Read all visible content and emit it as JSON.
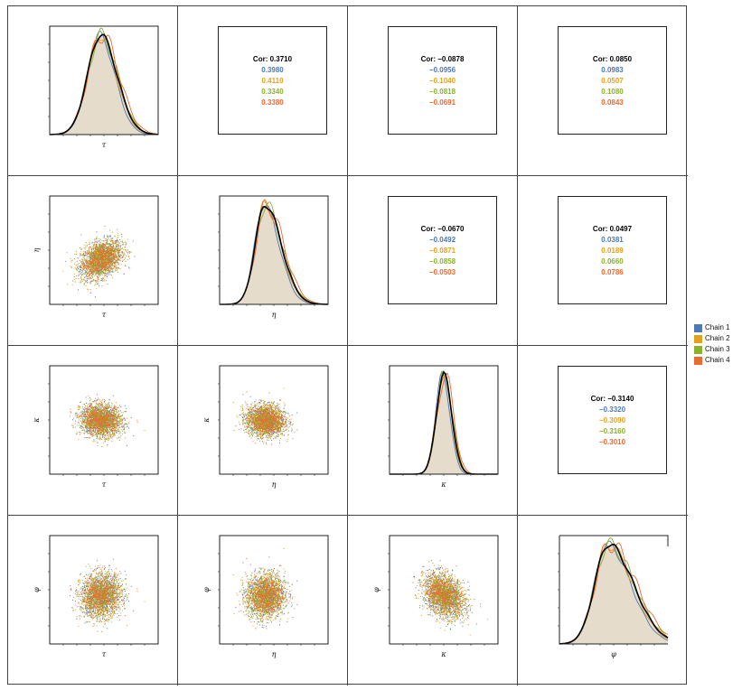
{
  "chart_data": {
    "type": "scatter-matrix",
    "variables": [
      "τ",
      "η",
      "κ",
      "φ"
    ],
    "colors": {
      "chain1": "#4f79b5",
      "chain2": "#e2a21b",
      "chain3": "#8ab22a",
      "chain4": "#ea6a32",
      "combined": "#000000",
      "density_fill": "#e6dccb"
    },
    "legend": {
      "placement": "right",
      "entries": [
        "Chain 1",
        "Chain 2",
        "Chain 3",
        "Chain 4"
      ]
    },
    "correlations": [
      {
        "pair": [
          "τ",
          "η"
        ],
        "overall": "Cor: 0.3710",
        "chains": [
          "0.3980",
          "0.4110",
          "0.3340",
          "0.3380"
        ]
      },
      {
        "pair": [
          "τ",
          "κ"
        ],
        "overall": "Cor: −0.0878",
        "chains": [
          "−0.0956",
          "−0.1040",
          "−0.0818",
          "−0.0691"
        ]
      },
      {
        "pair": [
          "τ",
          "φ"
        ],
        "overall": "Cor: 0.0850",
        "chains": [
          "0.0983",
          "0.0507",
          "0.1080",
          "0.0843"
        ]
      },
      {
        "pair": [
          "η",
          "κ"
        ],
        "overall": "Cor: −0.0670",
        "chains": [
          "−0.0492",
          "−0.0871",
          "−0.0858",
          "−0.0503"
        ]
      },
      {
        "pair": [
          "η",
          "φ"
        ],
        "overall": "Cor: 0.0497",
        "chains": [
          "0.0381",
          "0.0189",
          "0.0660",
          "0.0786"
        ]
      },
      {
        "pair": [
          "κ",
          "φ"
        ],
        "overall": "Cor: −0.3140",
        "chains": [
          "−0.3320",
          "−0.3090",
          "−0.3160",
          "−0.3010"
        ]
      }
    ],
    "diagonal": "density per chain overlaid with combined density",
    "lower": "scatter of posterior draws colored by chain",
    "grid": false
  }
}
